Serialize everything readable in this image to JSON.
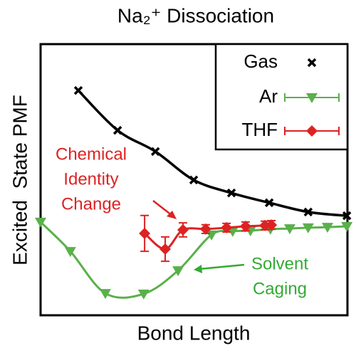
{
  "chart_data": {
    "type": "line",
    "title": "Na₂⁺ Dissociation",
    "xlabel": "Bond Length",
    "ylabel": "Excited  State PMF",
    "xlim": [
      0,
      1
    ],
    "ylim": [
      0,
      1
    ],
    "legend": "upper right",
    "annotations": [
      {
        "lines": [
          "Chemical",
          "Identity",
          "Change"
        ],
        "color": "#dd2222"
      },
      {
        "lines": [
          "Solvent",
          "Caging"
        ],
        "color": "#33aa33"
      }
    ],
    "series": [
      {
        "name": "Gas",
        "color": "#000000",
        "marker": "x",
        "x": [
          0.123,
          0.251,
          0.374,
          0.499,
          0.622,
          0.745,
          0.872,
          0.998
        ],
        "values": [
          0.829,
          0.682,
          0.604,
          0.499,
          0.451,
          0.415,
          0.381,
          0.367
        ]
      },
      {
        "name": "Ar",
        "color": "#5ab04a",
        "marker": "triangle-down",
        "x": [
          0,
          0.097,
          0.211,
          0.336,
          0.448,
          0.557,
          0.626,
          0.684,
          0.749,
          0.812,
          0.872,
          0.935,
          0.998
        ],
        "values": [
          0.344,
          0.236,
          0.081,
          0.079,
          0.165,
          0.297,
          0.31,
          0.312,
          0.318,
          0.32,
          0.323,
          0.325,
          0.328
        ]
      },
      {
        "name": "THF",
        "color": "#dd2222",
        "marker": "diamond",
        "x": [
          0.339,
          0.406,
          0.464,
          0.538,
          0.606,
          0.668,
          0.731,
          0.752
        ],
        "values": [
          0.302,
          0.244,
          0.315,
          0.318,
          0.323,
          0.328,
          0.331,
          0.333
        ],
        "errors": [
          0.066,
          0.045,
          0.026,
          0.016,
          0.016,
          0.016,
          0.016,
          0.016
        ]
      }
    ]
  }
}
